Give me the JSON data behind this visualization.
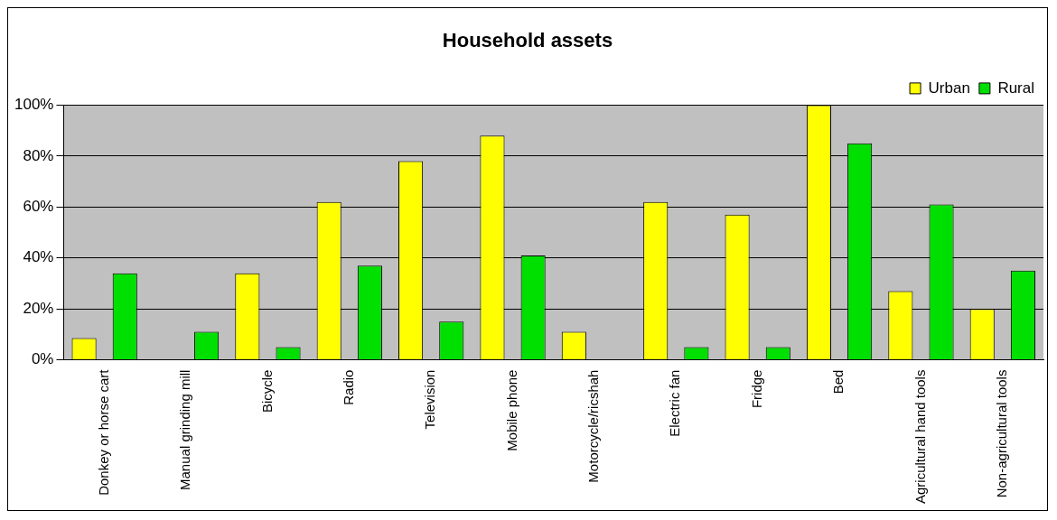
{
  "chart_data": {
    "type": "bar",
    "title": "Household assets",
    "categories": [
      "Donkey or horse cart",
      "Manual grinding mill",
      "Bicycle",
      "Radio",
      "Television",
      "Mobile phone",
      "Motorcycle/ricshah",
      "Electric fan",
      "Fridge",
      "Bed",
      "Agricultural hand tools",
      "Non-agricultural tools"
    ],
    "series": [
      {
        "name": "Urban",
        "color": "#ffff00",
        "values": [
          8.5,
          0,
          34,
          62,
          78,
          88,
          11,
          62,
          57,
          100,
          27,
          20
        ]
      },
      {
        "name": "Rural",
        "color": "#00e000",
        "values": [
          34,
          11,
          5,
          37,
          15,
          41,
          0,
          5,
          5,
          85,
          61,
          35
        ]
      }
    ],
    "ylim": [
      0,
      100
    ],
    "yticks": [
      {
        "value": 0,
        "label": "0%"
      },
      {
        "value": 20,
        "label": "20%"
      },
      {
        "value": 40,
        "label": "40%"
      },
      {
        "value": 60,
        "label": "60%"
      },
      {
        "value": 80,
        "label": "80%"
      },
      {
        "value": 100,
        "label": "100%"
      }
    ],
    "grid": "y",
    "legend": "top right"
  }
}
